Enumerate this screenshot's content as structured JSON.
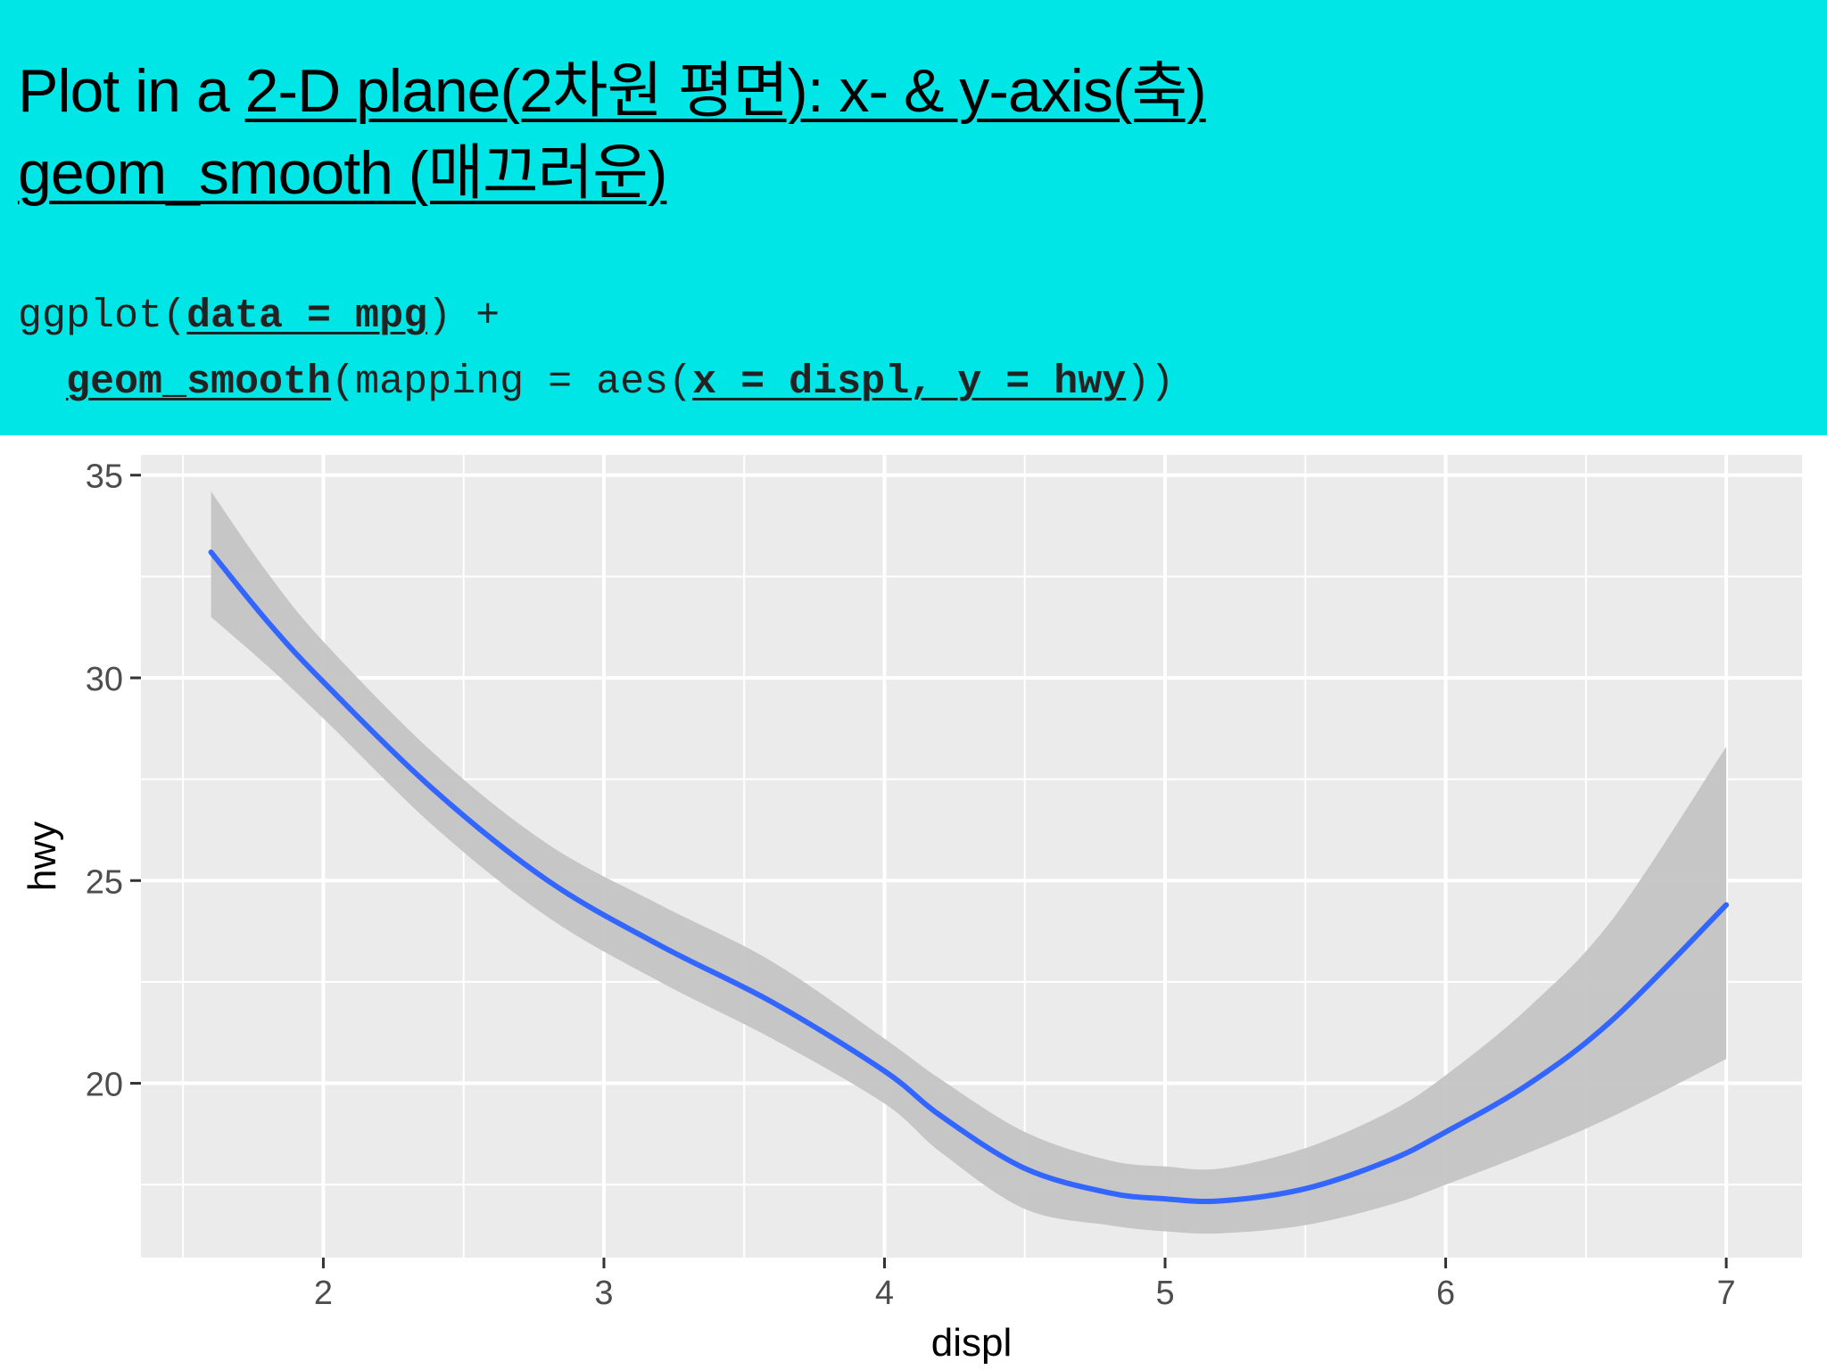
{
  "header": {
    "title_line1_prefix": "Plot in a ",
    "title_line1_link": "2-D plane(2차원 평면): x- & y-axis(축)",
    "title_line2_link": "geom_smooth (매끄러운)",
    "code_line1": {
      "fn": "ggplot(",
      "arg": "data = mpg",
      "tail": ") +"
    },
    "code_line2": {
      "fn": "geom_smooth",
      "mid": "(mapping = aes(",
      "arg": "x = displ, y = hwy",
      "tail": "))"
    }
  },
  "chart_data": {
    "type": "line",
    "xlabel": "displ",
    "ylabel": "hwy",
    "xlim": [
      1.35,
      7.27
    ],
    "ylim": [
      15.7,
      35.5
    ],
    "x_ticks": [
      2,
      3,
      4,
      5,
      6,
      7
    ],
    "x_tick_labels": [
      "2",
      "3",
      "4",
      "5",
      "6",
      "7"
    ],
    "y_ticks": [
      20,
      25,
      30,
      35
    ],
    "y_tick_labels": [
      "20",
      "25",
      "30",
      "35"
    ],
    "grid": true,
    "line_color": "#3366ff",
    "band_color": "#c4c4c4",
    "panel_color": "#ebebeb",
    "series": [
      {
        "x": [
          1.6,
          1.8,
          2.0,
          2.4,
          2.8,
          3.2,
          3.6,
          4.0,
          4.2,
          4.5,
          4.8,
          5.0,
          5.2,
          5.5,
          5.8,
          6.0,
          6.3,
          6.6,
          7.0
        ],
        "y": [
          33.1,
          31.4,
          29.9,
          27.2,
          25.0,
          23.4,
          22.0,
          20.3,
          19.2,
          17.9,
          17.3,
          17.15,
          17.1,
          17.4,
          18.1,
          18.8,
          20.0,
          21.6,
          24.4
        ],
        "lower": [
          31.5,
          30.3,
          29.0,
          26.3,
          24.1,
          22.5,
          21.1,
          19.5,
          18.3,
          16.9,
          16.5,
          16.35,
          16.3,
          16.5,
          17.0,
          17.5,
          18.3,
          19.2,
          20.6
        ],
        "upper": [
          34.6,
          32.6,
          30.9,
          28.1,
          25.9,
          24.4,
          23.0,
          21.1,
          20.1,
          18.8,
          18.1,
          17.95,
          17.9,
          18.4,
          19.3,
          20.2,
          21.9,
          24.1,
          28.3
        ]
      }
    ]
  }
}
